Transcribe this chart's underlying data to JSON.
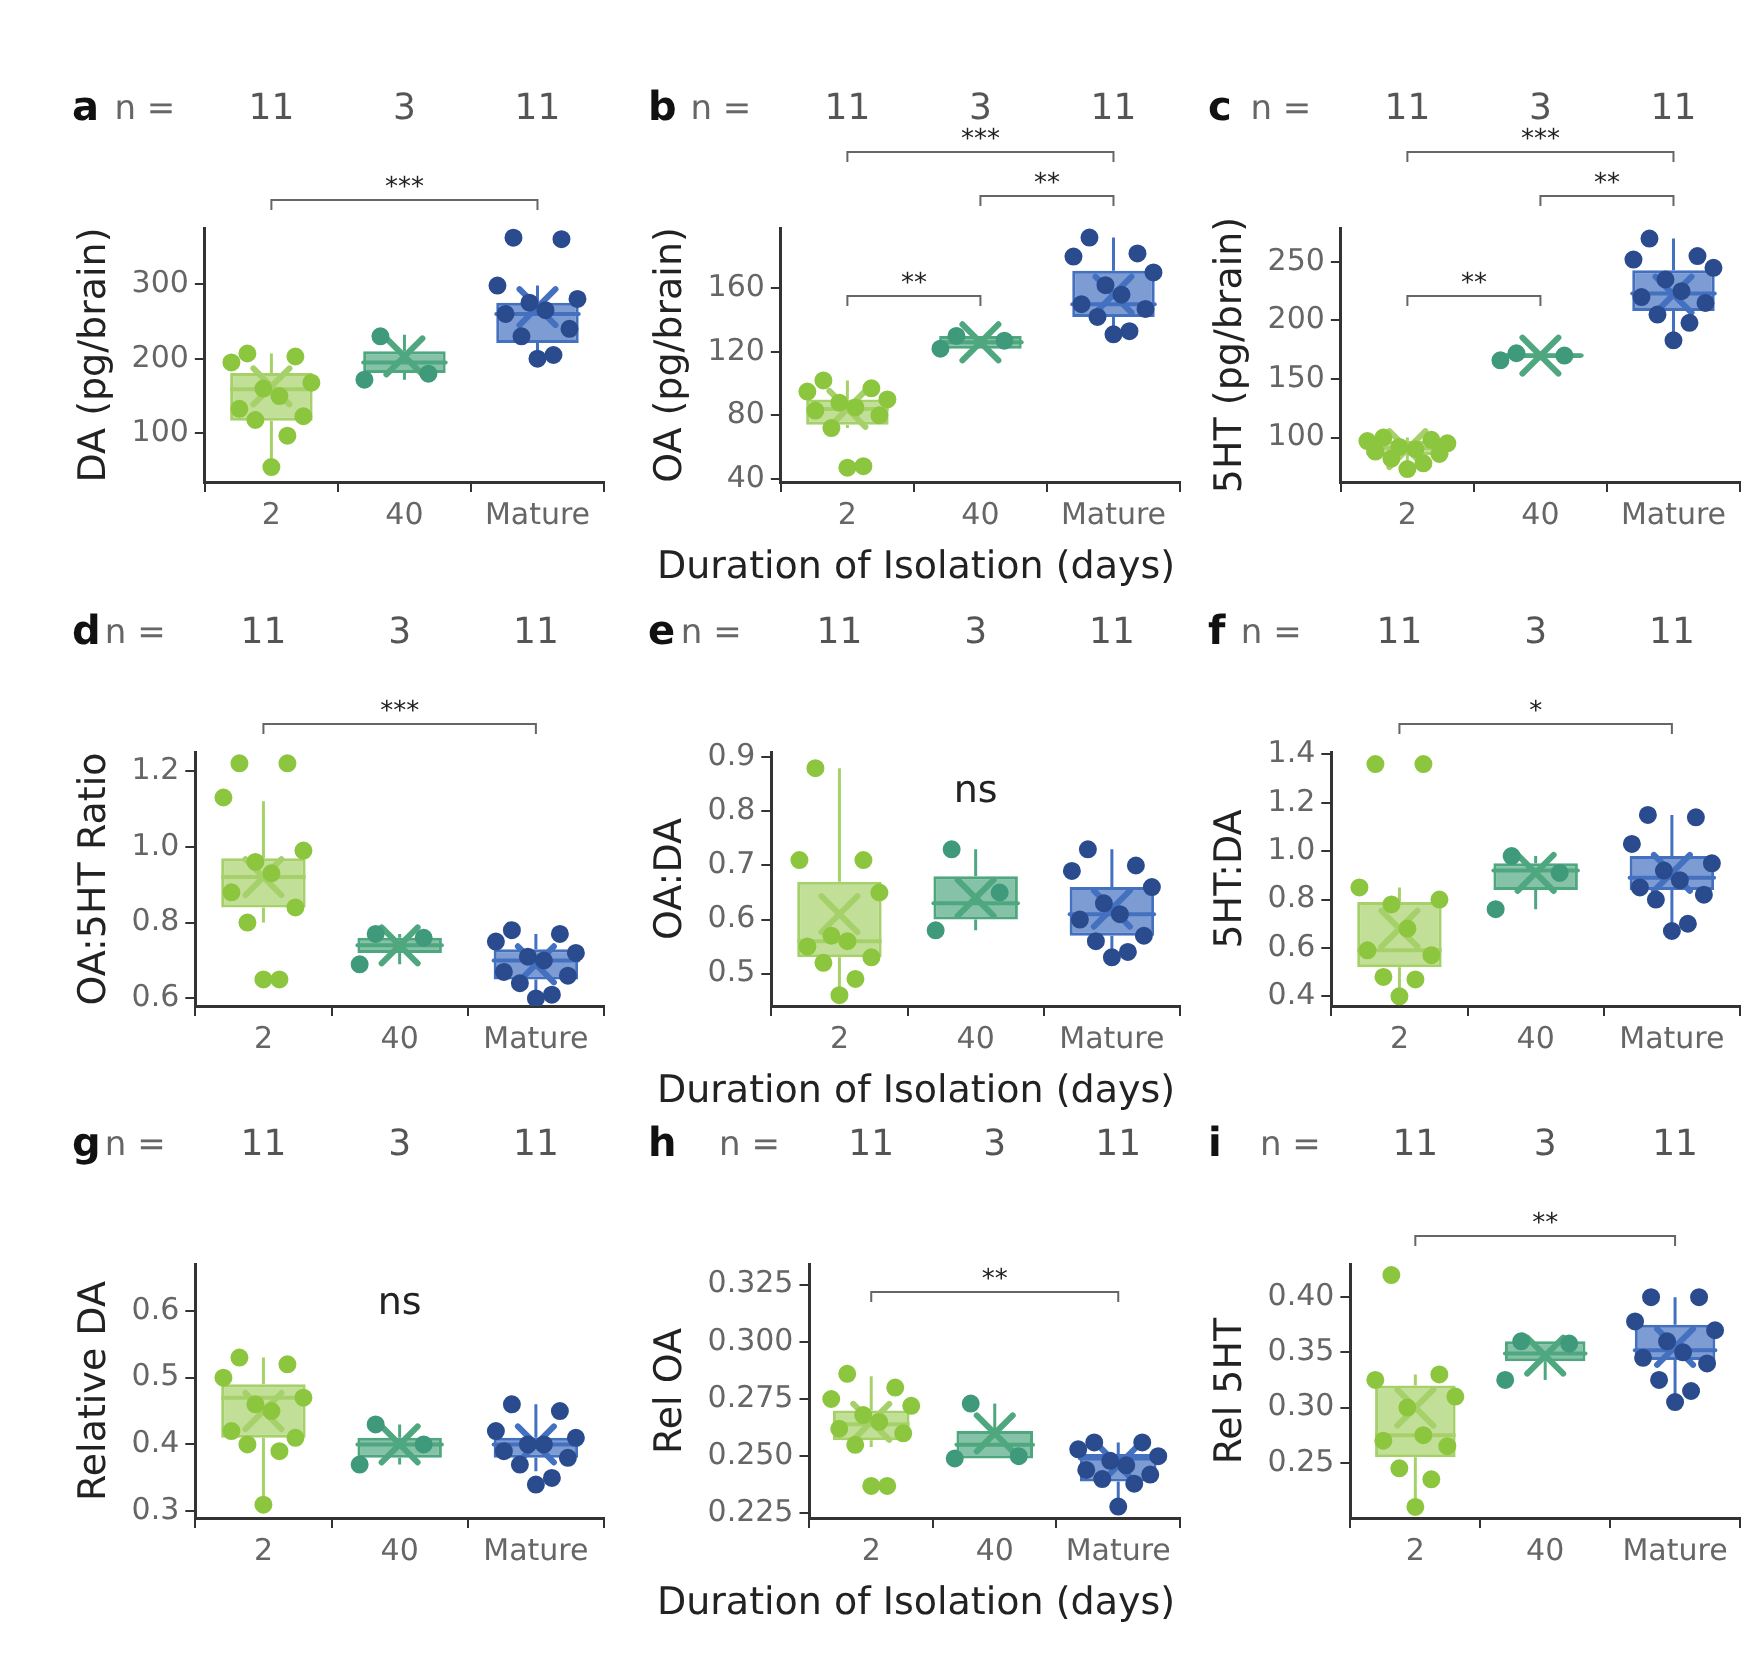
{
  "chart_data": [
    {
      "type": "box",
      "title": "a",
      "ylabel": "DA (pg/brain)",
      "categories": [
        "2",
        "40",
        "Mature"
      ],
      "ylim": [
        35,
        375
      ],
      "yticks": [
        100,
        200,
        300
      ],
      "marker": "circle",
      "colors": [
        "#a6d16a",
        "#4fa77f",
        "#4470c0"
      ],
      "boxes": [
        {
          "low": 55,
          "q1": 117,
          "median": 159,
          "q3": 181,
          "high": 207,
          "mean": 163
        },
        {
          "low": 172,
          "q1": 181,
          "median": 195,
          "q3": 210,
          "high": 232,
          "mean": 203
        },
        {
          "low": 200,
          "q1": 221,
          "median": 260,
          "q3": 275,
          "high": 298,
          "mean": 269
        }
      ],
      "series": [
        {
          "type": "scatter",
          "color": "#8cc63e",
          "x": [
            "2",
            "2",
            "2",
            "2",
            "2",
            "2",
            "2",
            "2",
            "2",
            "2",
            "2"
          ],
          "values": [
            207,
            203,
            195,
            168,
            160,
            150,
            133,
            123,
            118,
            97,
            55
          ]
        },
        {
          "type": "scatter",
          "color": "#3f9a7c",
          "x": [
            "40",
            "40",
            "40"
          ],
          "values": [
            230,
            180,
            172
          ]
        },
        {
          "type": "scatter",
          "color": "#2a4b8d",
          "x": [
            "Mature",
            "Mature",
            "Mature",
            "Mature",
            "Mature",
            "Mature",
            "Mature",
            "Mature",
            "Mature",
            "Mature",
            "Mature"
          ],
          "values": [
            362,
            360,
            298,
            280,
            275,
            265,
            260,
            240,
            230,
            205,
            200
          ]
        }
      ],
      "annotations": [
        "n =",
        "11",
        "3",
        "11",
        "***"
      ]
    },
    {
      "type": "box",
      "title": "b",
      "ylabel": "OA (pg/brain)",
      "xlabel": "Duration of Isolation (days)",
      "categories": [
        "2",
        "40",
        "Mature"
      ],
      "ylim": [
        38,
        198
      ],
      "yticks": [
        40,
        80,
        120,
        160
      ],
      "marker": "circle",
      "colors": [
        "#a6d16a",
        "#4fa77f",
        "#4470c0"
      ],
      "boxes": [
        {
          "low": 72,
          "q1": 74,
          "median": 84,
          "q3": 90,
          "high": 102,
          "mean": 84
        },
        {
          "low": 122,
          "q1": 122,
          "median": 126,
          "q3": 130,
          "high": 130,
          "mean": 126
        },
        {
          "low": 131,
          "q1": 142,
          "median": 150,
          "q3": 171,
          "high": 192,
          "mean": 156
        }
      ],
      "series": [
        {
          "type": "scatter",
          "color": "#8cc63e",
          "x": [
            "2",
            "2",
            "2",
            "2",
            "2",
            "2",
            "2",
            "2",
            "2",
            "2",
            "2"
          ],
          "values": [
            102,
            97,
            95,
            90,
            88,
            85,
            83,
            80,
            72,
            48,
            47
          ]
        },
        {
          "type": "scatter",
          "color": "#3f9a7c",
          "x": [
            "40",
            "40",
            "40"
          ],
          "values": [
            130,
            127,
            122
          ]
        },
        {
          "type": "scatter",
          "color": "#2a4b8d",
          "x": [
            "Mature",
            "Mature",
            "Mature",
            "Mature",
            "Mature",
            "Mature",
            "Mature",
            "Mature",
            "Mature",
            "Mature",
            "Mature"
          ],
          "values": [
            192,
            182,
            180,
            170,
            162,
            156,
            150,
            147,
            142,
            133,
            131
          ]
        }
      ],
      "annotations": [
        "n =",
        "11",
        "3",
        "11",
        "***",
        "**",
        "**"
      ]
    },
    {
      "type": "box",
      "title": "c",
      "ylabel": "5HT (pg/brain)",
      "categories": [
        "2",
        "40",
        "Mature"
      ],
      "ylim": [
        62,
        279
      ],
      "yticks": [
        100,
        150,
        200,
        250
      ],
      "marker": "circle",
      "colors": [
        "#a6d16a",
        "#4fa77f",
        "#4470c0"
      ],
      "boxes": [
        {
          "low": 73,
          "q1": 85,
          "median": 91,
          "q3": 97,
          "high": 100,
          "mean": 90
        },
        {
          "low": 166,
          "q1": 168,
          "median": 170,
          "q3": 172,
          "high": 172,
          "mean": 170
        },
        {
          "low": 183,
          "q1": 208,
          "median": 223,
          "q3": 243,
          "high": 270,
          "mean": 222
        }
      ],
      "series": [
        {
          "type": "scatter",
          "color": "#8cc63e",
          "x": [
            "2",
            "2",
            "2",
            "2",
            "2",
            "2",
            "2",
            "2",
            "2",
            "2",
            "2"
          ],
          "values": [
            100,
            98,
            97,
            95,
            92,
            90,
            88,
            86,
            82,
            78,
            73
          ]
        },
        {
          "type": "scatter",
          "color": "#3f9a7c",
          "x": [
            "40",
            "40",
            "40"
          ],
          "values": [
            172,
            170,
            166
          ]
        },
        {
          "type": "scatter",
          "color": "#2a4b8d",
          "x": [
            "Mature",
            "Mature",
            "Mature",
            "Mature",
            "Mature",
            "Mature",
            "Mature",
            "Mature",
            "Mature",
            "Mature",
            "Mature"
          ],
          "values": [
            270,
            255,
            252,
            245,
            235,
            225,
            220,
            215,
            205,
            198,
            183
          ]
        }
      ],
      "annotations": [
        "n =",
        "11",
        "3",
        "11",
        "***",
        "**",
        "**"
      ]
    },
    {
      "type": "box",
      "title": "d",
      "ylabel": "OA:5HT Ratio",
      "categories": [
        "2",
        "40",
        "Mature"
      ],
      "ylim": [
        0.58,
        1.25
      ],
      "yticks": [
        0.6,
        0.8,
        {
          "value": 1,
          "label": "1.0"
        },
        1.2
      ],
      "marker": "circle",
      "colors": [
        "#a6d16a",
        "#4fa77f",
        "#4470c0"
      ],
      "boxes": [
        {
          "low": 0.8,
          "q1": 0.84,
          "median": 0.92,
          "q3": 0.97,
          "high": 1.12,
          "mean": 0.92
        },
        {
          "low": 0.69,
          "q1": 0.72,
          "median": 0.74,
          "q3": 0.76,
          "high": 0.77,
          "mean": 0.74
        },
        {
          "low": 0.6,
          "q1": 0.65,
          "median": 0.7,
          "q3": 0.73,
          "high": 0.77,
          "mean": 0.69
        }
      ],
      "series": [
        {
          "type": "scatter",
          "color": "#8cc63e",
          "x": [
            "2",
            "2",
            "2",
            "2",
            "2",
            "2",
            "2",
            "2",
            "2",
            "2",
            "2"
          ],
          "values": [
            1.22,
            1.22,
            1.13,
            0.99,
            0.96,
            0.93,
            0.88,
            0.84,
            0.8,
            0.65,
            0.65
          ]
        },
        {
          "type": "scatter",
          "color": "#3f9a7c",
          "x": [
            "40",
            "40",
            "40"
          ],
          "values": [
            0.77,
            0.76,
            0.69
          ]
        },
        {
          "type": "scatter",
          "color": "#2a4b8d",
          "x": [
            "Mature",
            "Mature",
            "Mature",
            "Mature",
            "Mature",
            "Mature",
            "Mature",
            "Mature",
            "Mature",
            "Mature",
            "Mature"
          ],
          "values": [
            0.78,
            0.77,
            0.75,
            0.72,
            0.71,
            0.7,
            0.67,
            0.66,
            0.64,
            0.61,
            0.6
          ]
        }
      ],
      "annotations": [
        "n =",
        "11",
        "3",
        "11",
        "***"
      ]
    },
    {
      "type": "box",
      "title": "e",
      "ylabel": "OA:DA",
      "xlabel": "Duration of Isolation (days)",
      "categories": [
        "2",
        "40",
        "Mature"
      ],
      "ylim": [
        0.44,
        0.91
      ],
      "yticks": [
        0.5,
        0.6,
        0.7,
        0.8,
        0.9
      ],
      "marker": "circle",
      "colors": [
        "#a6d16a",
        "#4fa77f",
        "#4470c0"
      ],
      "boxes": [
        {
          "low": 0.46,
          "q1": 0.53,
          "median": 0.56,
          "q3": 0.67,
          "high": 0.88,
          "mean": 0.61
        },
        {
          "low": 0.58,
          "q1": 0.6,
          "median": 0.63,
          "q3": 0.68,
          "high": 0.73,
          "mean": 0.64
        },
        {
          "low": 0.53,
          "q1": 0.57,
          "median": 0.61,
          "q3": 0.66,
          "high": 0.73,
          "mean": 0.62
        }
      ],
      "series": [
        {
          "type": "scatter",
          "color": "#8cc63e",
          "x": [
            "2",
            "2",
            "2",
            "2",
            "2",
            "2",
            "2",
            "2",
            "2",
            "2",
            "2"
          ],
          "values": [
            0.88,
            0.71,
            0.71,
            0.65,
            0.57,
            0.56,
            0.55,
            0.53,
            0.52,
            0.49,
            0.46
          ]
        },
        {
          "type": "scatter",
          "color": "#3f9a7c",
          "x": [
            "40",
            "40",
            "40"
          ],
          "values": [
            0.73,
            0.65,
            0.58
          ]
        },
        {
          "type": "scatter",
          "color": "#2a4b8d",
          "x": [
            "Mature",
            "Mature",
            "Mature",
            "Mature",
            "Mature",
            "Mature",
            "Mature",
            "Mature",
            "Mature",
            "Mature",
            "Mature"
          ],
          "values": [
            0.73,
            0.7,
            0.69,
            0.66,
            0.63,
            0.61,
            0.6,
            0.57,
            0.56,
            0.54,
            0.53
          ]
        }
      ],
      "annotations": [
        "n =",
        "11",
        "3",
        "11",
        "ns"
      ]
    },
    {
      "type": "box",
      "title": "f",
      "ylabel": "5HT:DA",
      "categories": [
        "2",
        "40",
        "Mature"
      ],
      "ylim": [
        0.36,
        1.41
      ],
      "yticks": [
        0.4,
        0.6,
        0.8,
        {
          "value": 1,
          "label": "1.0"
        },
        1.2,
        1.4
      ],
      "marker": "circle",
      "colors": [
        "#a6d16a",
        "#4fa77f",
        "#4470c0"
      ],
      "boxes": [
        {
          "low": 0.4,
          "q1": 0.52,
          "median": 0.59,
          "q3": 0.79,
          "high": 0.85,
          "mean": 0.68
        },
        {
          "low": 0.76,
          "q1": 0.84,
          "median": 0.92,
          "q3": 0.95,
          "high": 0.98,
          "mean": 0.91
        },
        {
          "low": 0.67,
          "q1": 0.84,
          "median": 0.89,
          "q3": 0.98,
          "high": 1.15,
          "mean": 0.91
        }
      ],
      "series": [
        {
          "type": "scatter",
          "color": "#8cc63e",
          "x": [
            "2",
            "2",
            "2",
            "2",
            "2",
            "2",
            "2",
            "2",
            "2",
            "2",
            "2"
          ],
          "values": [
            1.36,
            1.36,
            0.85,
            0.8,
            0.78,
            0.68,
            0.59,
            0.57,
            0.48,
            0.47,
            0.4
          ]
        },
        {
          "type": "scatter",
          "color": "#3f9a7c",
          "x": [
            "40",
            "40",
            "40"
          ],
          "values": [
            0.98,
            0.91,
            0.76
          ]
        },
        {
          "type": "scatter",
          "color": "#2a4b8d",
          "x": [
            "Mature",
            "Mature",
            "Mature",
            "Mature",
            "Mature",
            "Mature",
            "Mature",
            "Mature",
            "Mature",
            "Mature",
            "Mature"
          ],
          "values": [
            1.15,
            1.14,
            1.03,
            0.95,
            0.92,
            0.88,
            0.85,
            0.82,
            0.8,
            0.7,
            0.67
          ]
        }
      ],
      "annotations": [
        "n =",
        "11",
        "3",
        "11",
        "*"
      ]
    },
    {
      "type": "box",
      "title": "g",
      "ylabel": "Relative DA",
      "categories": [
        "2",
        "40",
        "Mature"
      ],
      "ylim": [
        0.29,
        0.67
      ],
      "yticks": [
        0.3,
        0.4,
        0.5,
        0.6
      ],
      "marker": "circle",
      "colors": [
        "#a6d16a",
        "#4fa77f",
        "#4470c0"
      ],
      "boxes": [
        {
          "low": 0.31,
          "q1": 0.41,
          "median": 0.47,
          "q3": 0.49,
          "high": 0.53,
          "mean": 0.45
        },
        {
          "low": 0.37,
          "q1": 0.38,
          "median": 0.4,
          "q3": 0.41,
          "high": 0.43,
          "mean": 0.4
        },
        {
          "low": 0.36,
          "q1": 0.38,
          "median": 0.4,
          "q3": 0.41,
          "high": 0.46,
          "mean": 0.4
        }
      ],
      "series": [
        {
          "type": "scatter",
          "color": "#8cc63e",
          "x": [
            "2",
            "2",
            "2",
            "2",
            "2",
            "2",
            "2",
            "2",
            "2",
            "2",
            "2"
          ],
          "values": [
            0.53,
            0.52,
            0.5,
            0.47,
            0.46,
            0.45,
            0.42,
            0.41,
            0.4,
            0.39,
            0.31
          ]
        },
        {
          "type": "scatter",
          "color": "#3f9a7c",
          "x": [
            "40",
            "40",
            "40"
          ],
          "values": [
            0.43,
            0.4,
            0.37
          ]
        },
        {
          "type": "scatter",
          "color": "#2a4b8d",
          "x": [
            "Mature",
            "Mature",
            "Mature",
            "Mature",
            "Mature",
            "Mature",
            "Mature",
            "Mature",
            "Mature",
            "Mature",
            "Mature"
          ],
          "values": [
            0.46,
            0.45,
            0.42,
            0.41,
            0.4,
            0.4,
            0.39,
            0.38,
            0.37,
            0.35,
            0.34
          ]
        }
      ],
      "annotations": [
        "n =",
        "11",
        "3",
        "11",
        "ns"
      ]
    },
    {
      "type": "box",
      "title": "h",
      "ylabel": "Rel OA",
      "xlabel": "Duration of Isolation (days)",
      "categories": [
        "2",
        "40",
        "Mature"
      ],
      "ylim": [
        0.223,
        0.334
      ],
      "yticks": [
        0.225,
        {
          "value": 0.25,
          "label": "0.250"
        },
        0.275,
        {
          "value": 0.3,
          "label": "0.300"
        },
        0.325
      ],
      "marker": "circle",
      "colors": [
        "#a6d16a",
        "#4fa77f",
        "#4470c0"
      ],
      "boxes": [
        {
          "low": 0.254,
          "q1": 0.257,
          "median": 0.264,
          "q3": 0.27,
          "high": 0.285,
          "mean": 0.265
        },
        {
          "low": 0.249,
          "q1": 0.249,
          "median": 0.255,
          "q3": 0.261,
          "high": 0.273,
          "mean": 0.26
        },
        {
          "low": 0.228,
          "q1": 0.239,
          "median": 0.249,
          "q3": 0.251,
          "high": 0.256,
          "mean": 0.246
        }
      ],
      "series": [
        {
          "type": "scatter",
          "color": "#8cc63e",
          "x": [
            "2",
            "2",
            "2",
            "2",
            "2",
            "2",
            "2",
            "2",
            "2",
            "2",
            "2"
          ],
          "values": [
            0.286,
            0.28,
            0.275,
            0.272,
            0.268,
            0.265,
            0.262,
            0.26,
            0.255,
            0.237,
            0.237
          ]
        },
        {
          "type": "scatter",
          "color": "#3f9a7c",
          "x": [
            "40",
            "40",
            "40"
          ],
          "values": [
            0.273,
            0.25,
            0.249
          ]
        },
        {
          "type": "scatter",
          "color": "#2a4b8d",
          "x": [
            "Mature",
            "Mature",
            "Mature",
            "Mature",
            "Mature",
            "Mature",
            "Mature",
            "Mature",
            "Mature",
            "Mature",
            "Mature"
          ],
          "values": [
            0.256,
            0.256,
            0.253,
            0.25,
            0.248,
            0.246,
            0.244,
            0.242,
            0.24,
            0.238,
            0.228
          ]
        }
      ],
      "annotations": [
        "n =",
        "11",
        "3",
        "11",
        "**"
      ]
    },
    {
      "type": "box",
      "title": "i",
      "ylabel": "Rel 5HT",
      "categories": [
        "2",
        "40",
        "Mature"
      ],
      "ylim": [
        0.2,
        0.43
      ],
      "yticks": [
        0.25,
        {
          "value": 0.3,
          "label": "0.30"
        },
        0.35,
        {
          "value": 0.4,
          "label": "0.40"
        }
      ],
      "marker": "circle",
      "colors": [
        "#a6d16a",
        "#4fa77f",
        "#4470c0"
      ],
      "boxes": [
        {
          "low": 0.21,
          "q1": 0.255,
          "median": 0.275,
          "q3": 0.32,
          "high": 0.33,
          "mean": 0.3
        },
        {
          "low": 0.325,
          "q1": 0.342,
          "median": 0.349,
          "q3": 0.36,
          "high": 0.36,
          "mean": 0.347
        },
        {
          "low": 0.306,
          "q1": 0.343,
          "median": 0.352,
          "q3": 0.375,
          "high": 0.4,
          "mean": 0.355
        }
      ],
      "series": [
        {
          "type": "scatter",
          "color": "#8cc63e",
          "x": [
            "2",
            "2",
            "2",
            "2",
            "2",
            "2",
            "2",
            "2",
            "2",
            "2",
            "2"
          ],
          "values": [
            0.42,
            0.33,
            0.325,
            0.31,
            0.3,
            0.275,
            0.27,
            0.265,
            0.245,
            0.235,
            0.21
          ]
        },
        {
          "type": "scatter",
          "color": "#3f9a7c",
          "x": [
            "40",
            "40",
            "40"
          ],
          "values": [
            0.36,
            0.358,
            0.325
          ]
        },
        {
          "type": "scatter",
          "color": "#2a4b8d",
          "x": [
            "Mature",
            "Mature",
            "Mature",
            "Mature",
            "Mature",
            "Mature",
            "Mature",
            "Mature",
            "Mature",
            "Mature",
            "Mature"
          ],
          "values": [
            0.4,
            0.4,
            0.378,
            0.37,
            0.36,
            0.35,
            0.345,
            0.34,
            0.325,
            0.315,
            0.305
          ]
        }
      ],
      "annotations": [
        "n =",
        "11",
        "3",
        "11",
        "**"
      ]
    }
  ]
}
